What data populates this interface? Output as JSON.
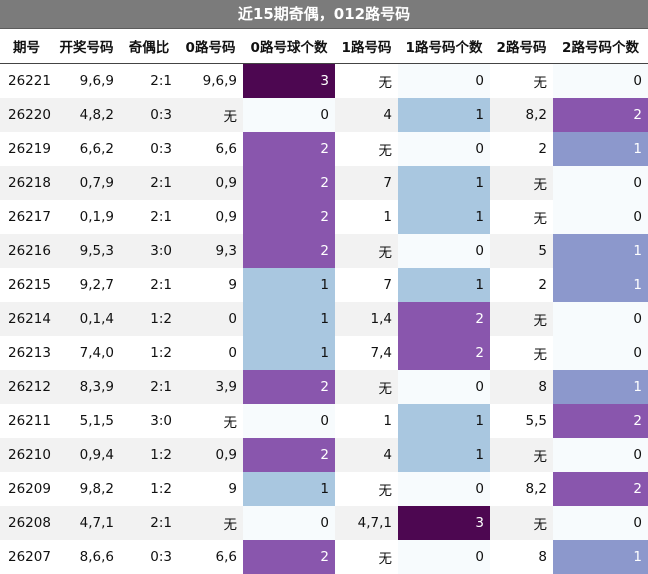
{
  "title": "近15期奇偶，012路号码",
  "headers": [
    "期号",
    "开奖号码",
    "奇偶比",
    "0路号码",
    "0路号球个数",
    "1路号码",
    "1路号码个数",
    "2路号码",
    "2路号码个数"
  ],
  "rows": [
    [
      "26221",
      "9,6,9",
      "2:1",
      "9,6,9",
      "3",
      "无",
      "0",
      "无",
      "0"
    ],
    [
      "26220",
      "4,8,2",
      "0:3",
      "无",
      "0",
      "4",
      "1",
      "8,2",
      "2"
    ],
    [
      "26219",
      "6,6,2",
      "0:3",
      "6,6",
      "2",
      "无",
      "0",
      "2",
      "1"
    ],
    [
      "26218",
      "0,7,9",
      "2:1",
      "0,9",
      "2",
      "7",
      "1",
      "无",
      "0"
    ],
    [
      "26217",
      "0,1,9",
      "2:1",
      "0,9",
      "2",
      "1",
      "1",
      "无",
      "0"
    ],
    [
      "26216",
      "9,5,3",
      "3:0",
      "9,3",
      "2",
      "无",
      "0",
      "5",
      "1"
    ],
    [
      "26215",
      "9,2,7",
      "2:1",
      "9",
      "1",
      "7",
      "1",
      "2",
      "1"
    ],
    [
      "26214",
      "0,1,4",
      "1:2",
      "0",
      "1",
      "1,4",
      "2",
      "无",
      "0"
    ],
    [
      "26213",
      "7,4,0",
      "1:2",
      "0",
      "1",
      "7,4",
      "2",
      "无",
      "0"
    ],
    [
      "26212",
      "8,3,9",
      "2:1",
      "3,9",
      "2",
      "无",
      "0",
      "8",
      "1"
    ],
    [
      "26211",
      "5,1,5",
      "3:0",
      "无",
      "0",
      "1",
      "1",
      "5,5",
      "2"
    ],
    [
      "26210",
      "0,9,4",
      "1:2",
      "0,9",
      "2",
      "4",
      "1",
      "无",
      "0"
    ],
    [
      "26209",
      "9,8,2",
      "1:2",
      "9",
      "1",
      "无",
      "0",
      "8,2",
      "2"
    ],
    [
      "26208",
      "4,7,1",
      "2:1",
      "无",
      "0",
      "4,7,1",
      "3",
      "无",
      "0"
    ],
    [
      "26207",
      "8,6,6",
      "0:3",
      "6,6",
      "2",
      "无",
      "0",
      "8",
      "1"
    ]
  ],
  "colors": {
    "title_bg": "#7b7b7b",
    "count_0": "#f7fbfd",
    "count_1": "#a9c7e0",
    "count_2": "#8956ad",
    "count_3": "#4d0751",
    "count_1_route2": "#8c98cc"
  }
}
